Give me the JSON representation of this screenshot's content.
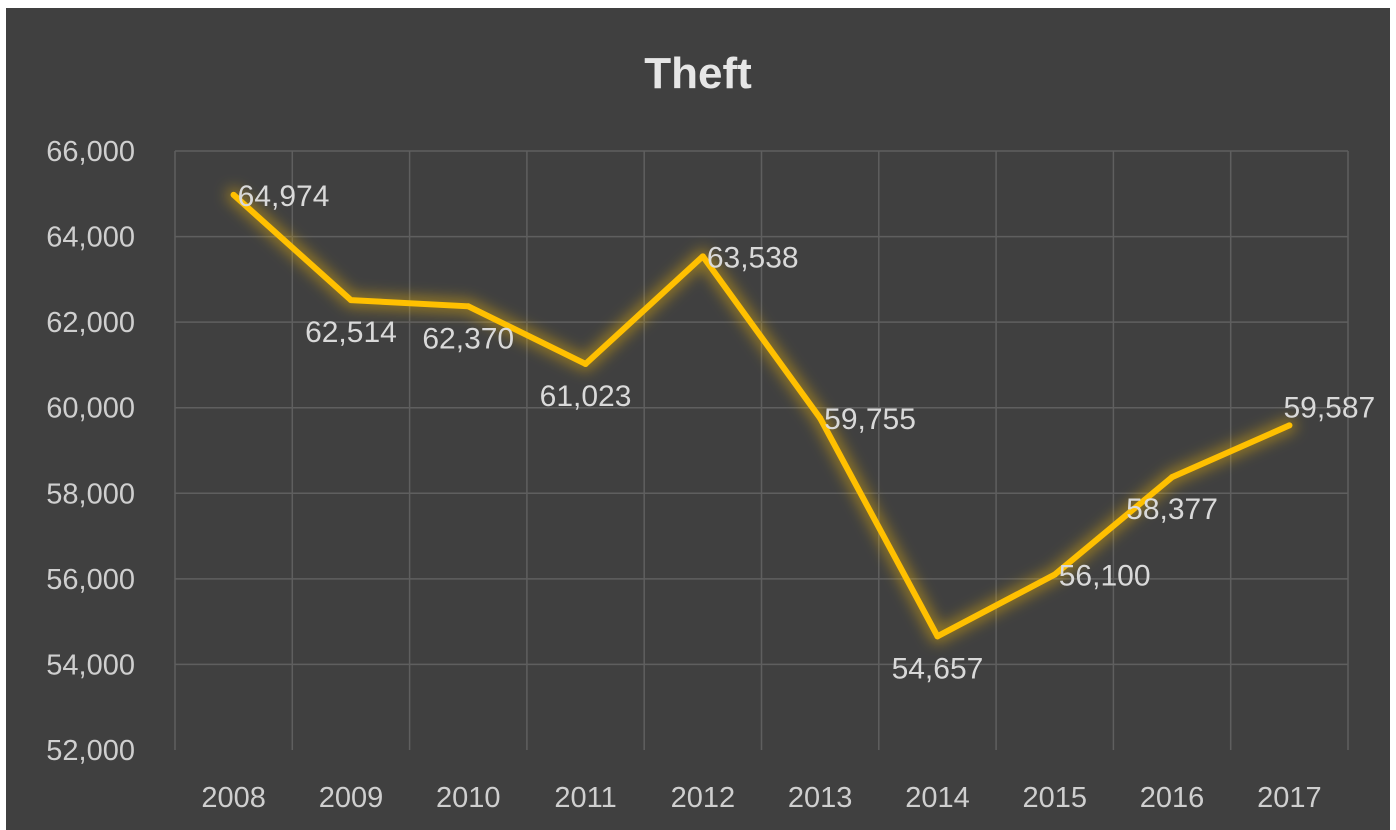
{
  "chart_data": {
    "type": "line",
    "title": "Theft",
    "categories": [
      "2008",
      "2009",
      "2010",
      "2011",
      "2012",
      "2013",
      "2014",
      "2015",
      "2016",
      "2017"
    ],
    "values": [
      64974,
      62514,
      62370,
      61023,
      63538,
      59755,
      54657,
      56100,
      58377,
      59587
    ],
    "data_labels": [
      "64,974",
      "62,514",
      "62,370",
      "61,023",
      "63,538",
      "59,755",
      "54,657",
      "56,100",
      "58,377",
      "59,587"
    ],
    "y_ticks": [
      "52,000",
      "54,000",
      "56,000",
      "58,000",
      "60,000",
      "62,000",
      "64,000",
      "66,000"
    ],
    "ylim": [
      52000,
      66000
    ],
    "grid": true,
    "legend": "none",
    "line_color": "#FFC000",
    "background_color": "#404040"
  }
}
